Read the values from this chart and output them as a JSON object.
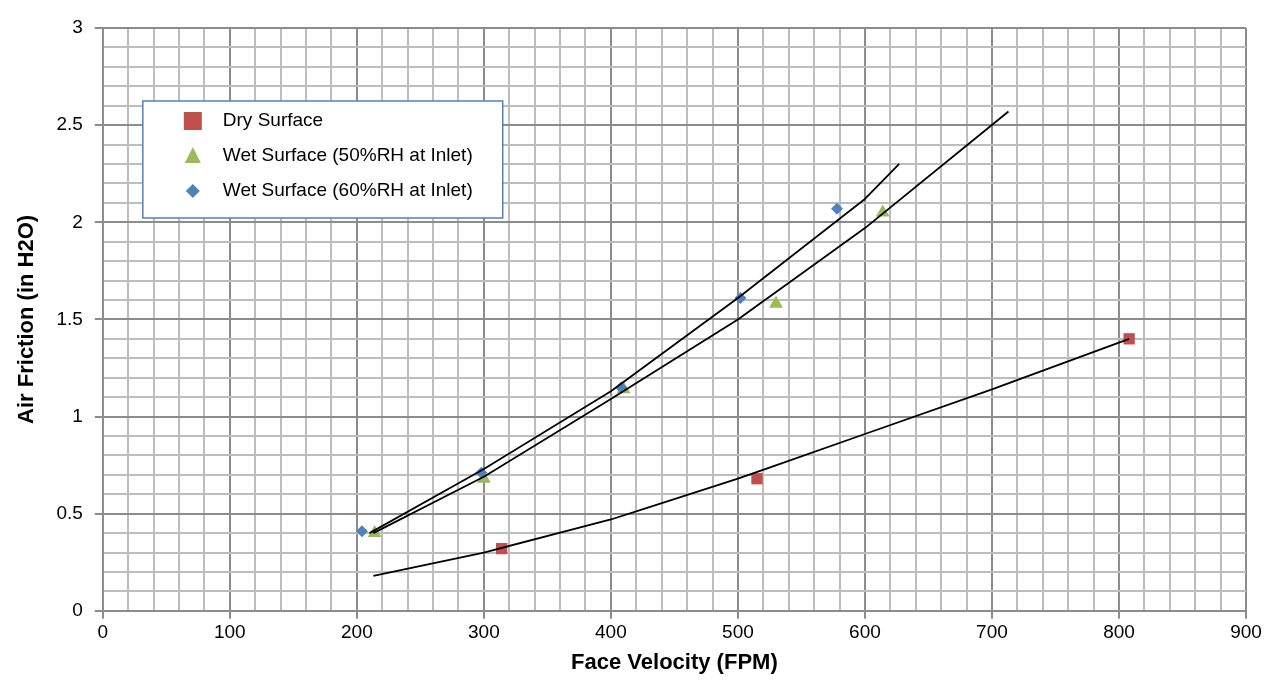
{
  "chart_data": {
    "type": "scatter",
    "xlabel": "Face Velocity (FPM)",
    "ylabel": "Air Friction (in H2O)",
    "xlim": [
      0,
      900
    ],
    "ylim": [
      0,
      3
    ],
    "xticks": [
      0,
      {
        "value": 20,
        "label": null
      },
      {
        "value": 40,
        "label": null
      },
      {
        "value": 60,
        "label": null
      },
      {
        "value": 80,
        "label": null
      },
      100,
      {
        "value": 120,
        "label": null
      },
      {
        "value": 140,
        "label": null
      },
      {
        "value": 160,
        "label": null
      },
      {
        "value": 180,
        "label": null
      },
      200,
      {
        "value": 220,
        "label": null
      },
      {
        "value": 240,
        "label": null
      },
      {
        "value": 260,
        "label": null
      },
      {
        "value": 280,
        "label": null
      },
      300,
      {
        "value": 320,
        "label": null
      },
      {
        "value": 340,
        "label": null
      },
      {
        "value": 360,
        "label": null
      },
      {
        "value": 380,
        "label": null
      },
      400,
      {
        "value": 420,
        "label": null
      },
      {
        "value": 440,
        "label": null
      },
      {
        "value": 460,
        "label": null
      },
      {
        "value": 480,
        "label": null
      },
      500,
      {
        "value": 520,
        "label": null
      },
      {
        "value": 540,
        "label": null
      },
      {
        "value": 560,
        "label": null
      },
      {
        "value": 580,
        "label": null
      },
      600,
      {
        "value": 620,
        "label": null
      },
      {
        "value": 640,
        "label": null
      },
      {
        "value": 660,
        "label": null
      },
      {
        "value": 680,
        "label": null
      },
      700,
      {
        "value": 720,
        "label": null
      },
      {
        "value": 740,
        "label": null
      },
      {
        "value": 760,
        "label": null
      },
      {
        "value": 780,
        "label": null
      },
      800,
      {
        "value": 820,
        "label": null
      },
      {
        "value": 840,
        "label": null
      },
      {
        "value": 860,
        "label": null
      },
      {
        "value": 880,
        "label": null
      },
      900
    ],
    "yticks": [
      0,
      {
        "value": 0.1,
        "label": null
      },
      {
        "value": 0.2,
        "label": null
      },
      {
        "value": 0.3,
        "label": null
      },
      {
        "value": 0.4,
        "label": null
      },
      0.5,
      {
        "value": 0.6,
        "label": null
      },
      {
        "value": 0.7,
        "label": null
      },
      {
        "value": 0.8,
        "label": null
      },
      {
        "value": 0.9,
        "label": null
      },
      1,
      {
        "value": 1.1,
        "label": null
      },
      {
        "value": 1.2,
        "label": null
      },
      {
        "value": 1.3,
        "label": null
      },
      {
        "value": 1.4,
        "label": null
      },
      1.5,
      {
        "value": 1.6,
        "label": null
      },
      {
        "value": 1.7,
        "label": null
      },
      {
        "value": 1.8,
        "label": null
      },
      {
        "value": 1.9,
        "label": null
      },
      2,
      {
        "value": 2.1,
        "label": null
      },
      {
        "value": 2.2,
        "label": null
      },
      {
        "value": 2.3,
        "label": null
      },
      {
        "value": 2.4,
        "label": null
      },
      2.5,
      {
        "value": 2.6,
        "label": null
      },
      {
        "value": 2.7,
        "label": null
      },
      {
        "value": 2.8,
        "label": null
      },
      {
        "value": 2.9,
        "label": null
      },
      3
    ],
    "grid": true,
    "legend": "top left",
    "series": [
      {
        "name": "Dry Surface",
        "color": "#c0504d",
        "marker": "square",
        "x": [
          314,
          515,
          808
        ],
        "values": [
          0.32,
          0.68,
          1.4
        ]
      },
      {
        "name": "Wet Surface (50%RH at Inlet)",
        "color": "#9bbb59",
        "marker": "triangle",
        "x": [
          214,
          300,
          410,
          530,
          614
        ],
        "values": [
          0.4,
          0.68,
          1.14,
          1.58,
          2.05
        ]
      },
      {
        "name": "Wet Surface (60%RH at Inlet)",
        "color": "#4f81bd",
        "marker": "diamond",
        "x": [
          204,
          298,
          408,
          502,
          578
        ],
        "values": [
          0.41,
          0.71,
          1.15,
          1.61,
          2.07
        ]
      },
      {
        "type": "line",
        "color": "#000000",
        "marker": "none",
        "x": [
          213,
          300,
          400,
          500,
          600,
          700,
          808
        ],
        "values": [
          0.18,
          0.3,
          0.47,
          0.68,
          0.91,
          1.14,
          1.4
        ]
      },
      {
        "type": "line",
        "color": "#000000",
        "marker": "none",
        "x": [
          213,
          300,
          400,
          500,
          600,
          713
        ],
        "values": [
          0.4,
          0.69,
          1.09,
          1.5,
          1.97,
          2.57
        ]
      },
      {
        "type": "line",
        "color": "#000000",
        "marker": "none",
        "x": [
          210,
          300,
          400,
          500,
          600,
          627
        ],
        "values": [
          0.4,
          0.73,
          1.13,
          1.61,
          2.12,
          2.3
        ]
      }
    ]
  }
}
